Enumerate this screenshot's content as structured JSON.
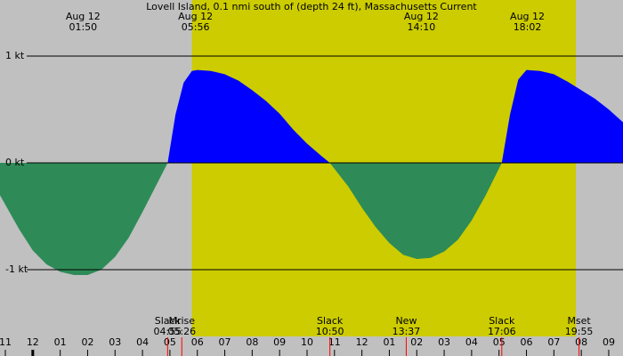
{
  "chart_data": {
    "type": "area",
    "title": "Lovell Island, 0.1 nmi south of (depth 24 ft), Massachusetts Current",
    "x": [
      -1.2,
      -0.5,
      0,
      0.5,
      1.0,
      1.5,
      2.0,
      2.5,
      3.0,
      3.5,
      4.0,
      4.5,
      4.92,
      5.2,
      5.5,
      5.8,
      6.0,
      6.5,
      7.0,
      7.5,
      8.0,
      8.5,
      9.0,
      9.5,
      10.0,
      10.5,
      10.83,
      11.5,
      12.0,
      12.5,
      13.0,
      13.5,
      14.0,
      14.5,
      15.0,
      15.5,
      16.0,
      16.5,
      17.1,
      17.4,
      17.7,
      18.0,
      18.5,
      19.0,
      19.5,
      20.0,
      20.5,
      21.0,
      21.52
    ],
    "values": [
      -0.3,
      -0.62,
      -0.82,
      -0.95,
      -1.02,
      -1.05,
      -1.05,
      -1.0,
      -0.88,
      -0.7,
      -0.46,
      -0.21,
      0,
      0.45,
      0.75,
      0.86,
      0.87,
      0.86,
      0.83,
      0.77,
      0.68,
      0.58,
      0.46,
      0.31,
      0.18,
      0.07,
      0,
      -0.22,
      -0.42,
      -0.6,
      -0.75,
      -0.86,
      -0.9,
      -0.89,
      -0.83,
      -0.72,
      -0.54,
      -0.31,
      0,
      0.45,
      0.78,
      0.87,
      0.86,
      0.83,
      0.76,
      0.68,
      0.6,
      0.5,
      0.38
    ],
    "flood_color": "#0000ff",
    "ebb_color": "#2e8b57",
    "background_color": "#c0c0c0",
    "daylight_color": "#cccc00",
    "daylight": [
      5.8,
      19.8
    ],
    "xlim": [
      -1.195,
      21.52
    ],
    "ylim": [
      -1.775,
      1.525
    ],
    "yticks": [
      {
        "value": 1,
        "label": "1 kt"
      },
      {
        "value": 0,
        "label": "0 kt"
      },
      {
        "value": -1,
        "label": "-1 kt"
      }
    ],
    "xticks": [
      {
        "value": -1,
        "label": "11"
      },
      {
        "value": 0,
        "label": "12"
      },
      {
        "value": 1,
        "label": "01"
      },
      {
        "value": 2,
        "label": "02"
      },
      {
        "value": 3,
        "label": "03"
      },
      {
        "value": 4,
        "label": "04"
      },
      {
        "value": 5,
        "label": "05"
      },
      {
        "value": 6,
        "label": "06"
      },
      {
        "value": 7,
        "label": "07"
      },
      {
        "value": 8,
        "label": "08"
      },
      {
        "value": 9,
        "label": "09"
      },
      {
        "value": 10,
        "label": "10"
      },
      {
        "value": 11,
        "label": "11"
      },
      {
        "value": 12,
        "label": "12"
      },
      {
        "value": 13,
        "label": "01"
      },
      {
        "value": 14,
        "label": "02"
      },
      {
        "value": 15,
        "label": "03"
      },
      {
        "value": 16,
        "label": "04"
      },
      {
        "value": 17,
        "label": "05"
      },
      {
        "value": 18,
        "label": "06"
      },
      {
        "value": 19,
        "label": "07"
      },
      {
        "value": 20,
        "label": "08"
      },
      {
        "value": 21,
        "label": "09"
      }
    ],
    "peaks": [
      {
        "date": "Aug 12",
        "time": "01:50",
        "x": 1.833
      },
      {
        "date": "Aug 12",
        "time": "05:56",
        "x": 5.933
      },
      {
        "date": "Aug 12",
        "time": "14:10",
        "x": 14.167
      },
      {
        "date": "Aug 12",
        "time": "18:02",
        "x": 18.033
      }
    ],
    "events": [
      {
        "name": "Slack",
        "time": "04:55",
        "x": 4.917
      },
      {
        "name": "Mrise",
        "time": "05:26",
        "x": 5.433
      },
      {
        "name": "Slack",
        "time": "10:50",
        "x": 10.833
      },
      {
        "name": "New",
        "time": "13:37",
        "x": 13.617
      },
      {
        "name": "Slack",
        "time": "17:06",
        "x": 17.1
      },
      {
        "name": "Mset",
        "time": "19:55",
        "x": 19.917
      }
    ]
  }
}
